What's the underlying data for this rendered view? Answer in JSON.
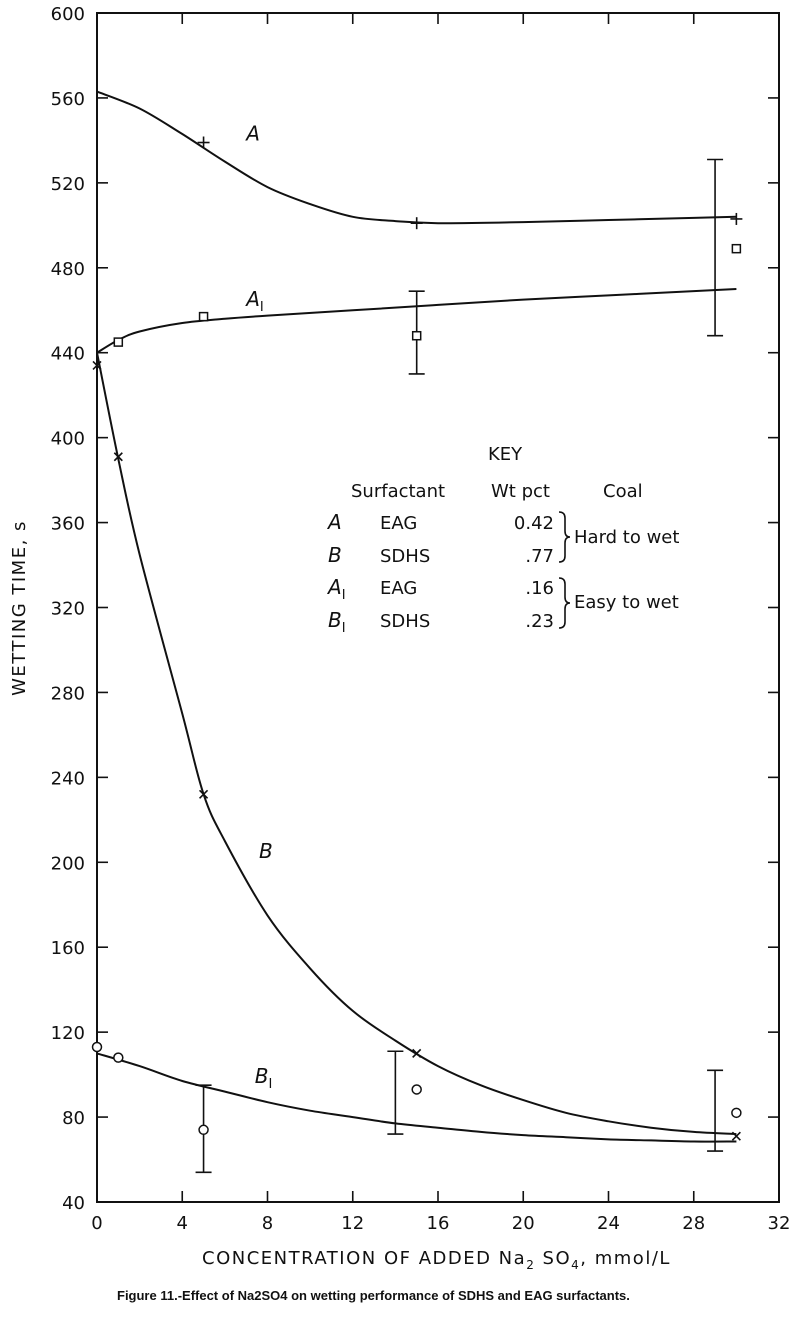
{
  "chart_data": {
    "type": "line",
    "ylabel": "WETTING TIME, s",
    "xlabel": "CONCENTRATION OF ADDED Na",
    "xlabel_sub": "2",
    "xlabel_rest": " SO",
    "xlabel_sub2": "4",
    "xlabel_end": ", mmol/L",
    "caption": "Figure 11.-Effect of Na2SO4 on wetting performance of SDHS and EAG surfactants.",
    "xlim": [
      0,
      32
    ],
    "ylim": [
      40,
      600
    ],
    "x_ticks": [
      0,
      4,
      8,
      12,
      16,
      20,
      24,
      28,
      32
    ],
    "y_ticks": [
      40,
      80,
      120,
      160,
      200,
      240,
      280,
      320,
      360,
      400,
      440,
      480,
      520,
      560,
      600
    ],
    "series": [
      {
        "id": "A",
        "label": "A",
        "label_sub": "",
        "marker": "plus",
        "points": [
          [
            5,
            539
          ],
          [
            15,
            501
          ],
          [
            30,
            503
          ]
        ],
        "curve": [
          [
            0,
            563
          ],
          [
            2,
            555
          ],
          [
            4,
            543
          ],
          [
            6,
            530
          ],
          [
            8,
            518
          ],
          [
            10,
            510
          ],
          [
            12,
            504
          ],
          [
            14,
            502
          ],
          [
            16,
            501
          ],
          [
            20,
            501.5
          ],
          [
            24,
            502.5
          ],
          [
            28,
            503.5
          ],
          [
            30,
            504
          ]
        ],
        "label_at": [
          7,
          540
        ],
        "error_bars": [
          [
            29,
            448,
            531
          ]
        ]
      },
      {
        "id": "A1",
        "label": "A",
        "label_sub": "I",
        "marker": "square",
        "points": [
          [
            1,
            445
          ],
          [
            5,
            457
          ],
          [
            15,
            448
          ],
          [
            30,
            489
          ]
        ],
        "curve": [
          [
            0,
            440
          ],
          [
            1,
            446
          ],
          [
            2,
            450
          ],
          [
            4,
            454
          ],
          [
            6,
            456
          ],
          [
            8,
            457.5
          ],
          [
            12,
            460
          ],
          [
            16,
            462.5
          ],
          [
            20,
            465
          ],
          [
            24,
            467
          ],
          [
            28,
            469
          ],
          [
            30,
            470
          ]
        ],
        "label_at": [
          7,
          462
        ],
        "error_bars": [
          [
            15,
            430,
            469
          ]
        ]
      },
      {
        "id": "B",
        "label": "B",
        "label_sub": "",
        "marker": "x",
        "points": [
          [
            0,
            434
          ],
          [
            1,
            391
          ],
          [
            5,
            232
          ],
          [
            15,
            110
          ],
          [
            30,
            71
          ]
        ],
        "curve": [
          [
            0,
            440
          ],
          [
            1,
            390
          ],
          [
            2,
            345
          ],
          [
            4,
            270
          ],
          [
            5,
            232
          ],
          [
            6,
            210
          ],
          [
            8,
            175
          ],
          [
            10,
            150
          ],
          [
            12,
            130
          ],
          [
            14,
            116
          ],
          [
            16,
            104
          ],
          [
            18,
            95
          ],
          [
            20,
            88
          ],
          [
            22,
            82
          ],
          [
            24,
            78
          ],
          [
            26,
            75
          ],
          [
            28,
            73
          ],
          [
            30,
            72
          ]
        ],
        "label_at": [
          7.6,
          202
        ],
        "error_bars": []
      },
      {
        "id": "B1",
        "label": "B",
        "label_sub": "I",
        "marker": "circle",
        "points": [
          [
            0,
            113
          ],
          [
            1,
            108
          ],
          [
            5,
            74
          ],
          [
            15,
            93
          ],
          [
            30,
            82
          ]
        ],
        "curve": [
          [
            0,
            110
          ],
          [
            2,
            104
          ],
          [
            4,
            97
          ],
          [
            6,
            92
          ],
          [
            8,
            87
          ],
          [
            10,
            83
          ],
          [
            12,
            80
          ],
          [
            14,
            77
          ],
          [
            16,
            75
          ],
          [
            18,
            73
          ],
          [
            20,
            71.5
          ],
          [
            22,
            70.5
          ],
          [
            24,
            69.5
          ],
          [
            26,
            69
          ],
          [
            28,
            68.5
          ],
          [
            30,
            68.5
          ]
        ],
        "label_at": [
          7.4,
          96
        ],
        "error_bars": [
          [
            5,
            54,
            95
          ],
          [
            14,
            72,
            111
          ],
          [
            29,
            64,
            102
          ]
        ]
      }
    ],
    "key": {
      "title": "KEY",
      "columns": [
        "Surfactant",
        "Wt pct",
        "Coal"
      ],
      "rows": [
        {
          "id": "A",
          "sub": "",
          "name": "EAG",
          "wt": "0.42"
        },
        {
          "id": "B",
          "sub": "",
          "name": "SDHS",
          "wt": ".77"
        },
        {
          "id": "A",
          "sub": "I",
          "name": "EAG",
          "wt": ".16"
        },
        {
          "id": "B",
          "sub": "I",
          "name": "SDHS",
          "wt": ".23"
        }
      ],
      "groups": [
        "Hard to wet",
        "Easy to wet"
      ]
    }
  }
}
